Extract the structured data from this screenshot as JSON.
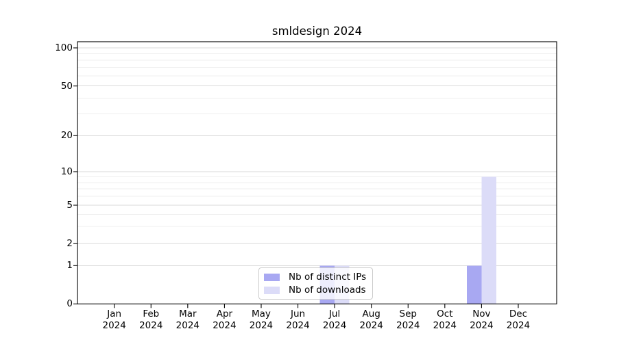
{
  "chart_data": {
    "type": "bar",
    "title": "smldesign 2024",
    "categories": [
      "Jan 2024",
      "Feb 2024",
      "Mar 2024",
      "Apr 2024",
      "May 2024",
      "Jun 2024",
      "Jul 2024",
      "Aug 2024",
      "Sep 2024",
      "Oct 2024",
      "Nov 2024",
      "Dec 2024"
    ],
    "series": [
      {
        "name": "Nb of distinct IPs",
        "color": "#a8a8f2",
        "values": [
          0,
          0,
          0,
          0,
          0,
          0,
          1,
          0,
          0,
          0,
          1,
          0
        ]
      },
      {
        "name": "Nb of downloads",
        "color": "#dcdcf8",
        "values": [
          0,
          0,
          0,
          0,
          0,
          0,
          1,
          0,
          0,
          0,
          9,
          0
        ]
      }
    ],
    "yscale": "symlog",
    "yticks": [
      0,
      1,
      2,
      5,
      10,
      20,
      50,
      100
    ],
    "y_minor_ticks": [
      3,
      4,
      6,
      7,
      8,
      9,
      30,
      40,
      60,
      70,
      80,
      90
    ],
    "ylim": [
      0,
      112
    ],
    "grid": true,
    "legend_position": "lower center",
    "colors": {
      "major_grid": "#d9d9d9",
      "minor_grid": "#efefef",
      "axis": "#000000",
      "legend_border": "#cccccc"
    }
  }
}
